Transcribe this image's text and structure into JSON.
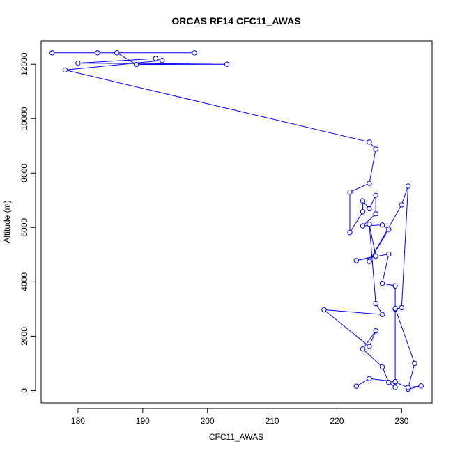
{
  "chart_data": {
    "type": "line",
    "title": "ORCAS RF14 CFC11_AWAS",
    "xlabel": "CFC11_AWAS",
    "ylabel": "Altitude (m)",
    "xlim": [
      174.3,
      234.7
    ],
    "ylim": [
      -450,
      12850
    ],
    "xticks": [
      180,
      190,
      200,
      210,
      220,
      230
    ],
    "yticks": [
      0,
      2000,
      4000,
      6000,
      8000,
      10000,
      12000
    ],
    "grid": false,
    "legend": "none",
    "marker": "open-circle",
    "color": "#0000ff",
    "series": [
      {
        "x": [
          198,
          176,
          186,
          183,
          186,
          189,
          203,
          180,
          192,
          193,
          178,
          225,
          226,
          225,
          222,
          222,
          224,
          224,
          225,
          226,
          226,
          224,
          227,
          228,
          225,
          230,
          231,
          230,
          229,
          229,
          227,
          228,
          223,
          226,
          225,
          226,
          227,
          218,
          225,
          226,
          224,
          227,
          228,
          229,
          229,
          232,
          231,
          231,
          233,
          231,
          229,
          229,
          225,
          223
        ]
      }
    ]
  }
}
